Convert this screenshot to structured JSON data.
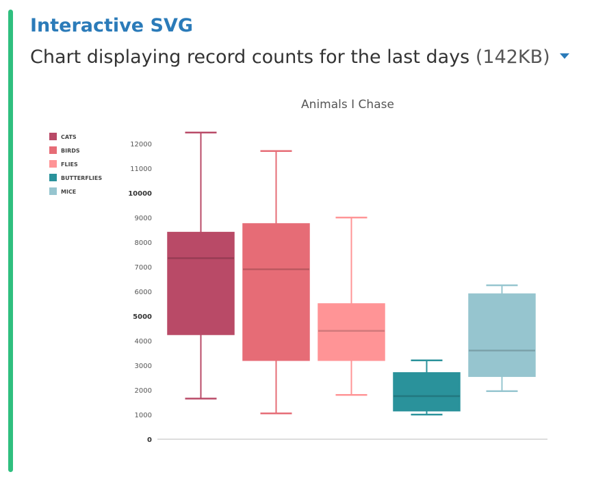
{
  "header": {
    "link_title": "Interactive SVG",
    "subtitle": "Chart displaying record counts for the last days",
    "file_size": "(142KB)"
  },
  "colors": {
    "accent_bar": "#2fbf7f",
    "link": "#2b7bb9",
    "axis": "#bbbbbb"
  },
  "icons": {
    "dropdown": "caret-down-icon"
  },
  "chart_data": {
    "type": "boxplot",
    "title": "Animals I Chase",
    "ylim": [
      0,
      12000
    ],
    "yticks": [
      0,
      1000,
      2000,
      3000,
      4000,
      5000,
      6000,
      7000,
      8000,
      9000,
      10000,
      11000,
      12000
    ],
    "bold_ticks": [
      0,
      5000,
      10000
    ],
    "legend_position": "top-left",
    "series": [
      {
        "name": "CATS",
        "color": "#b94a67",
        "min": 1650,
        "q1": 4250,
        "median": 7350,
        "q3": 8400,
        "max": 12450
      },
      {
        "name": "BIRDS",
        "color": "#e66c76",
        "min": 1050,
        "q1": 3200,
        "median": 6900,
        "q3": 8750,
        "max": 11700
      },
      {
        "name": "FLIES",
        "color": "#ff9496",
        "min": 1800,
        "q1": 3200,
        "median": 4400,
        "q3": 5500,
        "max": 9000
      },
      {
        "name": "BUTTERFLIES",
        "color": "#2a929b",
        "min": 1000,
        "q1": 1150,
        "median": 1750,
        "q3": 2700,
        "max": 3200
      },
      {
        "name": "MICE",
        "color": "#96c5cf",
        "min": 1950,
        "q1": 2550,
        "median": 3600,
        "q3": 5900,
        "max": 6250
      }
    ]
  }
}
